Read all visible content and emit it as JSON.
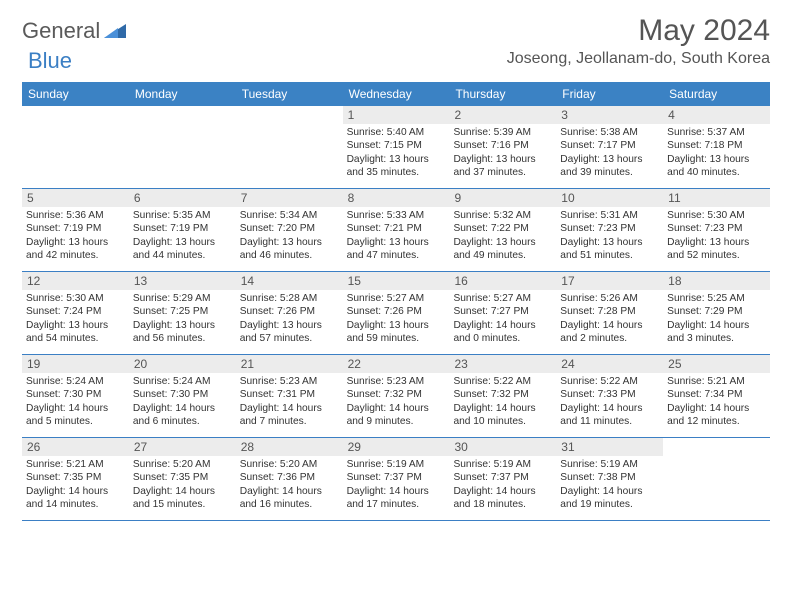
{
  "logo": {
    "text1": "General",
    "text2": "Blue"
  },
  "title": "May 2024",
  "location": "Joseong, Jeollanam-do, South Korea",
  "colors": {
    "header_bg": "#3b82c4",
    "daynum_bg": "#ececec",
    "border": "#3b7fc4",
    "text_dark": "#333333",
    "text_muted": "#555555"
  },
  "dayNames": [
    "Sunday",
    "Monday",
    "Tuesday",
    "Wednesday",
    "Thursday",
    "Friday",
    "Saturday"
  ],
  "weeks": [
    [
      {
        "n": "",
        "empty": true
      },
      {
        "n": "",
        "empty": true
      },
      {
        "n": "",
        "empty": true
      },
      {
        "n": "1",
        "sunrise": "Sunrise: 5:40 AM",
        "sunset": "Sunset: 7:15 PM",
        "daylight": "Daylight: 13 hours and 35 minutes."
      },
      {
        "n": "2",
        "sunrise": "Sunrise: 5:39 AM",
        "sunset": "Sunset: 7:16 PM",
        "daylight": "Daylight: 13 hours and 37 minutes."
      },
      {
        "n": "3",
        "sunrise": "Sunrise: 5:38 AM",
        "sunset": "Sunset: 7:17 PM",
        "daylight": "Daylight: 13 hours and 39 minutes."
      },
      {
        "n": "4",
        "sunrise": "Sunrise: 5:37 AM",
        "sunset": "Sunset: 7:18 PM",
        "daylight": "Daylight: 13 hours and 40 minutes."
      }
    ],
    [
      {
        "n": "5",
        "sunrise": "Sunrise: 5:36 AM",
        "sunset": "Sunset: 7:19 PM",
        "daylight": "Daylight: 13 hours and 42 minutes."
      },
      {
        "n": "6",
        "sunrise": "Sunrise: 5:35 AM",
        "sunset": "Sunset: 7:19 PM",
        "daylight": "Daylight: 13 hours and 44 minutes."
      },
      {
        "n": "7",
        "sunrise": "Sunrise: 5:34 AM",
        "sunset": "Sunset: 7:20 PM",
        "daylight": "Daylight: 13 hours and 46 minutes."
      },
      {
        "n": "8",
        "sunrise": "Sunrise: 5:33 AM",
        "sunset": "Sunset: 7:21 PM",
        "daylight": "Daylight: 13 hours and 47 minutes."
      },
      {
        "n": "9",
        "sunrise": "Sunrise: 5:32 AM",
        "sunset": "Sunset: 7:22 PM",
        "daylight": "Daylight: 13 hours and 49 minutes."
      },
      {
        "n": "10",
        "sunrise": "Sunrise: 5:31 AM",
        "sunset": "Sunset: 7:23 PM",
        "daylight": "Daylight: 13 hours and 51 minutes."
      },
      {
        "n": "11",
        "sunrise": "Sunrise: 5:30 AM",
        "sunset": "Sunset: 7:23 PM",
        "daylight": "Daylight: 13 hours and 52 minutes."
      }
    ],
    [
      {
        "n": "12",
        "sunrise": "Sunrise: 5:30 AM",
        "sunset": "Sunset: 7:24 PM",
        "daylight": "Daylight: 13 hours and 54 minutes."
      },
      {
        "n": "13",
        "sunrise": "Sunrise: 5:29 AM",
        "sunset": "Sunset: 7:25 PM",
        "daylight": "Daylight: 13 hours and 56 minutes."
      },
      {
        "n": "14",
        "sunrise": "Sunrise: 5:28 AM",
        "sunset": "Sunset: 7:26 PM",
        "daylight": "Daylight: 13 hours and 57 minutes."
      },
      {
        "n": "15",
        "sunrise": "Sunrise: 5:27 AM",
        "sunset": "Sunset: 7:26 PM",
        "daylight": "Daylight: 13 hours and 59 minutes."
      },
      {
        "n": "16",
        "sunrise": "Sunrise: 5:27 AM",
        "sunset": "Sunset: 7:27 PM",
        "daylight": "Daylight: 14 hours and 0 minutes."
      },
      {
        "n": "17",
        "sunrise": "Sunrise: 5:26 AM",
        "sunset": "Sunset: 7:28 PM",
        "daylight": "Daylight: 14 hours and 2 minutes."
      },
      {
        "n": "18",
        "sunrise": "Sunrise: 5:25 AM",
        "sunset": "Sunset: 7:29 PM",
        "daylight": "Daylight: 14 hours and 3 minutes."
      }
    ],
    [
      {
        "n": "19",
        "sunrise": "Sunrise: 5:24 AM",
        "sunset": "Sunset: 7:30 PM",
        "daylight": "Daylight: 14 hours and 5 minutes."
      },
      {
        "n": "20",
        "sunrise": "Sunrise: 5:24 AM",
        "sunset": "Sunset: 7:30 PM",
        "daylight": "Daylight: 14 hours and 6 minutes."
      },
      {
        "n": "21",
        "sunrise": "Sunrise: 5:23 AM",
        "sunset": "Sunset: 7:31 PM",
        "daylight": "Daylight: 14 hours and 7 minutes."
      },
      {
        "n": "22",
        "sunrise": "Sunrise: 5:23 AM",
        "sunset": "Sunset: 7:32 PM",
        "daylight": "Daylight: 14 hours and 9 minutes."
      },
      {
        "n": "23",
        "sunrise": "Sunrise: 5:22 AM",
        "sunset": "Sunset: 7:32 PM",
        "daylight": "Daylight: 14 hours and 10 minutes."
      },
      {
        "n": "24",
        "sunrise": "Sunrise: 5:22 AM",
        "sunset": "Sunset: 7:33 PM",
        "daylight": "Daylight: 14 hours and 11 minutes."
      },
      {
        "n": "25",
        "sunrise": "Sunrise: 5:21 AM",
        "sunset": "Sunset: 7:34 PM",
        "daylight": "Daylight: 14 hours and 12 minutes."
      }
    ],
    [
      {
        "n": "26",
        "sunrise": "Sunrise: 5:21 AM",
        "sunset": "Sunset: 7:35 PM",
        "daylight": "Daylight: 14 hours and 14 minutes."
      },
      {
        "n": "27",
        "sunrise": "Sunrise: 5:20 AM",
        "sunset": "Sunset: 7:35 PM",
        "daylight": "Daylight: 14 hours and 15 minutes."
      },
      {
        "n": "28",
        "sunrise": "Sunrise: 5:20 AM",
        "sunset": "Sunset: 7:36 PM",
        "daylight": "Daylight: 14 hours and 16 minutes."
      },
      {
        "n": "29",
        "sunrise": "Sunrise: 5:19 AM",
        "sunset": "Sunset: 7:37 PM",
        "daylight": "Daylight: 14 hours and 17 minutes."
      },
      {
        "n": "30",
        "sunrise": "Sunrise: 5:19 AM",
        "sunset": "Sunset: 7:37 PM",
        "daylight": "Daylight: 14 hours and 18 minutes."
      },
      {
        "n": "31",
        "sunrise": "Sunrise: 5:19 AM",
        "sunset": "Sunset: 7:38 PM",
        "daylight": "Daylight: 14 hours and 19 minutes."
      },
      {
        "n": "",
        "empty": true
      }
    ]
  ]
}
